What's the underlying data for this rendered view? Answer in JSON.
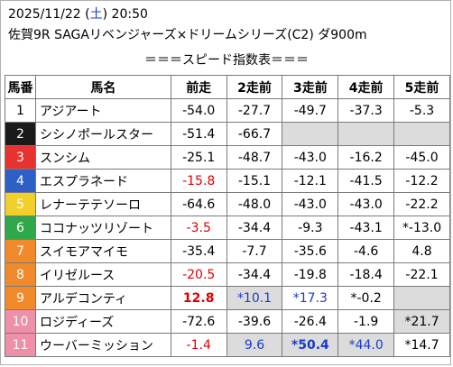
{
  "header": {
    "date": "2025/11/22",
    "dow_open": "(",
    "dow": "土",
    "dow_close": ")",
    "time": "20:50",
    "race": "佐賀9R SAGAリベンジャーズ×ドリームシリーズ(C2) ダ900m",
    "subtitle": "＝＝＝スピード指数表＝＝＝"
  },
  "table": {
    "columns": [
      "馬番",
      "馬名",
      "前走",
      "2走前",
      "3走前",
      "4走前",
      "5走前"
    ],
    "rows": [
      {
        "no": "1",
        "name": "アジアート",
        "vals": [
          "-54.0",
          "-27.7",
          "-49.7",
          "-37.3",
          "-5.3"
        ],
        "bg": "#ffffff",
        "fg": "#000000",
        "styles": [
          "",
          "",
          "",
          "",
          ""
        ],
        "grey": [
          false,
          false,
          false,
          false,
          false
        ]
      },
      {
        "no": "2",
        "name": "シシノポールスター",
        "vals": [
          "-51.4",
          "-66.7",
          "",
          "",
          ""
        ],
        "bg": "#1a1a1a",
        "fg": "#ffffff",
        "styles": [
          "",
          "",
          "",
          "",
          ""
        ],
        "grey": [
          false,
          false,
          true,
          true,
          true
        ]
      },
      {
        "no": "3",
        "name": "スンシム",
        "vals": [
          "-25.1",
          "-48.7",
          "-43.0",
          "-16.2",
          "-45.0"
        ],
        "bg": "#e8322f",
        "fg": "#ffffff",
        "styles": [
          "",
          "",
          "",
          "",
          ""
        ],
        "grey": [
          false,
          false,
          false,
          false,
          false
        ]
      },
      {
        "no": "4",
        "name": "エスプラネード",
        "vals": [
          "-15.8",
          "-15.1",
          "-12.1",
          "-41.5",
          "-12.2"
        ],
        "bg": "#2d5fc4",
        "fg": "#ffffff",
        "styles": [
          "red",
          "",
          "",
          "",
          ""
        ],
        "grey": [
          false,
          false,
          false,
          false,
          false
        ]
      },
      {
        "no": "5",
        "name": "レナーテテソーロ",
        "vals": [
          "-64.6",
          "-48.0",
          "-43.0",
          "-43.0",
          "-22.2"
        ],
        "bg": "#f2d02a",
        "fg": "#ffffff",
        "styles": [
          "",
          "",
          "",
          "",
          ""
        ],
        "grey": [
          false,
          false,
          false,
          false,
          false
        ]
      },
      {
        "no": "6",
        "name": "ココナッツリゾート",
        "vals": [
          "-3.5",
          "-34.4",
          "-9.3",
          "-43.1",
          "*-13.0"
        ],
        "bg": "#2ea84a",
        "fg": "#ffffff",
        "styles": [
          "red",
          "",
          "",
          "",
          ""
        ],
        "grey": [
          false,
          false,
          false,
          false,
          false
        ]
      },
      {
        "no": "7",
        "name": "スイモアマイモ",
        "vals": [
          "-35.4",
          "-7.7",
          "-35.6",
          "-4.6",
          "4.8"
        ],
        "bg": "#f08a2a",
        "fg": "#ffffff",
        "styles": [
          "",
          "",
          "",
          "",
          ""
        ],
        "grey": [
          false,
          false,
          false,
          false,
          false
        ]
      },
      {
        "no": "8",
        "name": "イリゼルース",
        "vals": [
          "-20.5",
          "-34.4",
          "-19.8",
          "-18.4",
          "-22.1"
        ],
        "bg": "#f08a2a",
        "fg": "#ffffff",
        "styles": [
          "red",
          "",
          "",
          "",
          ""
        ],
        "grey": [
          false,
          false,
          false,
          false,
          false
        ]
      },
      {
        "no": "9",
        "name": "アルデコンティ",
        "vals": [
          "12.8",
          "*10.1",
          "*17.3",
          "*-0.2",
          ""
        ],
        "bg": "#f08a2a",
        "fg": "#ffffff",
        "styles": [
          "red bold",
          "blue",
          "blue",
          "",
          ""
        ],
        "grey": [
          false,
          true,
          false,
          false,
          true
        ]
      },
      {
        "no": "10",
        "name": "ロジディーズ",
        "vals": [
          "-72.6",
          "-39.6",
          "-26.4",
          "-1.9",
          "*21.7"
        ],
        "bg": "#f08fa8",
        "fg": "#ffffff",
        "styles": [
          "",
          "",
          "",
          "",
          ""
        ],
        "grey": [
          false,
          false,
          false,
          false,
          true
        ]
      },
      {
        "no": "11",
        "name": "ウーバーミッション",
        "vals": [
          "-1.4",
          "9.6",
          "*50.4",
          "*44.0",
          "*14.7"
        ],
        "bg": "#f08fa8",
        "fg": "#ffffff",
        "styles": [
          "red",
          "blue",
          "blue bold",
          "blue",
          ""
        ],
        "grey": [
          false,
          true,
          true,
          true,
          false
        ]
      }
    ]
  }
}
